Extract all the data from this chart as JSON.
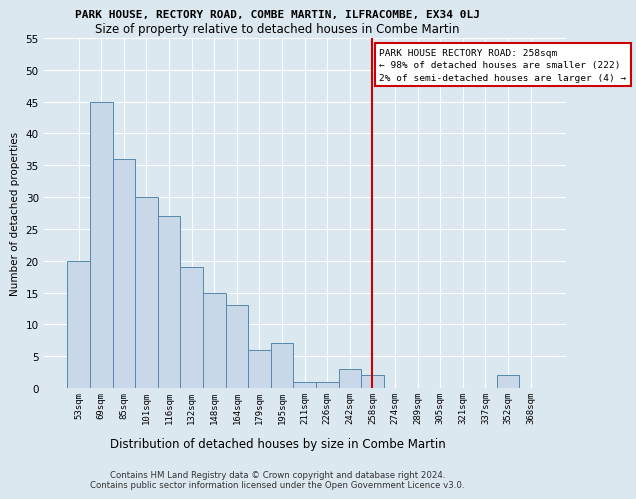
{
  "title_line1": "PARK HOUSE, RECTORY ROAD, COMBE MARTIN, ILFRACOMBE, EX34 0LJ",
  "title_line2": "Size of property relative to detached houses in Combe Martin",
  "xlabel": "Distribution of detached houses by size in Combe Martin",
  "ylabel": "Number of detached properties",
  "footer_line1": "Contains HM Land Registry data © Crown copyright and database right 2024.",
  "footer_line2": "Contains public sector information licensed under the Open Government Licence v3.0.",
  "bar_labels": [
    "53sqm",
    "69sqm",
    "85sqm",
    "101sqm",
    "116sqm",
    "132sqm",
    "148sqm",
    "164sqm",
    "179sqm",
    "195sqm",
    "211sqm",
    "226sqm",
    "242sqm",
    "258sqm",
    "274sqm",
    "289sqm",
    "305sqm",
    "321sqm",
    "337sqm",
    "352sqm",
    "368sqm"
  ],
  "bar_values": [
    20,
    45,
    36,
    30,
    27,
    19,
    15,
    13,
    6,
    7,
    1,
    1,
    3,
    2,
    0,
    0,
    0,
    0,
    0,
    2,
    0
  ],
  "bar_color": "#c8d8e8",
  "bar_edge_color": "#5588aa",
  "highlight_index": 13,
  "highlight_color": "#cc0000",
  "annotation_title": "PARK HOUSE RECTORY ROAD: 258sqm",
  "annotation_line2": "← 98% of detached houses are smaller (222)",
  "annotation_line3": "2% of semi-detached houses are larger (4) →",
  "annotation_box_color": "#ffffff",
  "annotation_box_edge": "#cc0000",
  "ylim": [
    0,
    55
  ],
  "yticks": [
    0,
    5,
    10,
    15,
    20,
    25,
    30,
    35,
    40,
    45,
    50,
    55
  ],
  "background_color": "#dce8f0",
  "plot_background": "#dce8f0",
  "grid_color": "#ffffff"
}
